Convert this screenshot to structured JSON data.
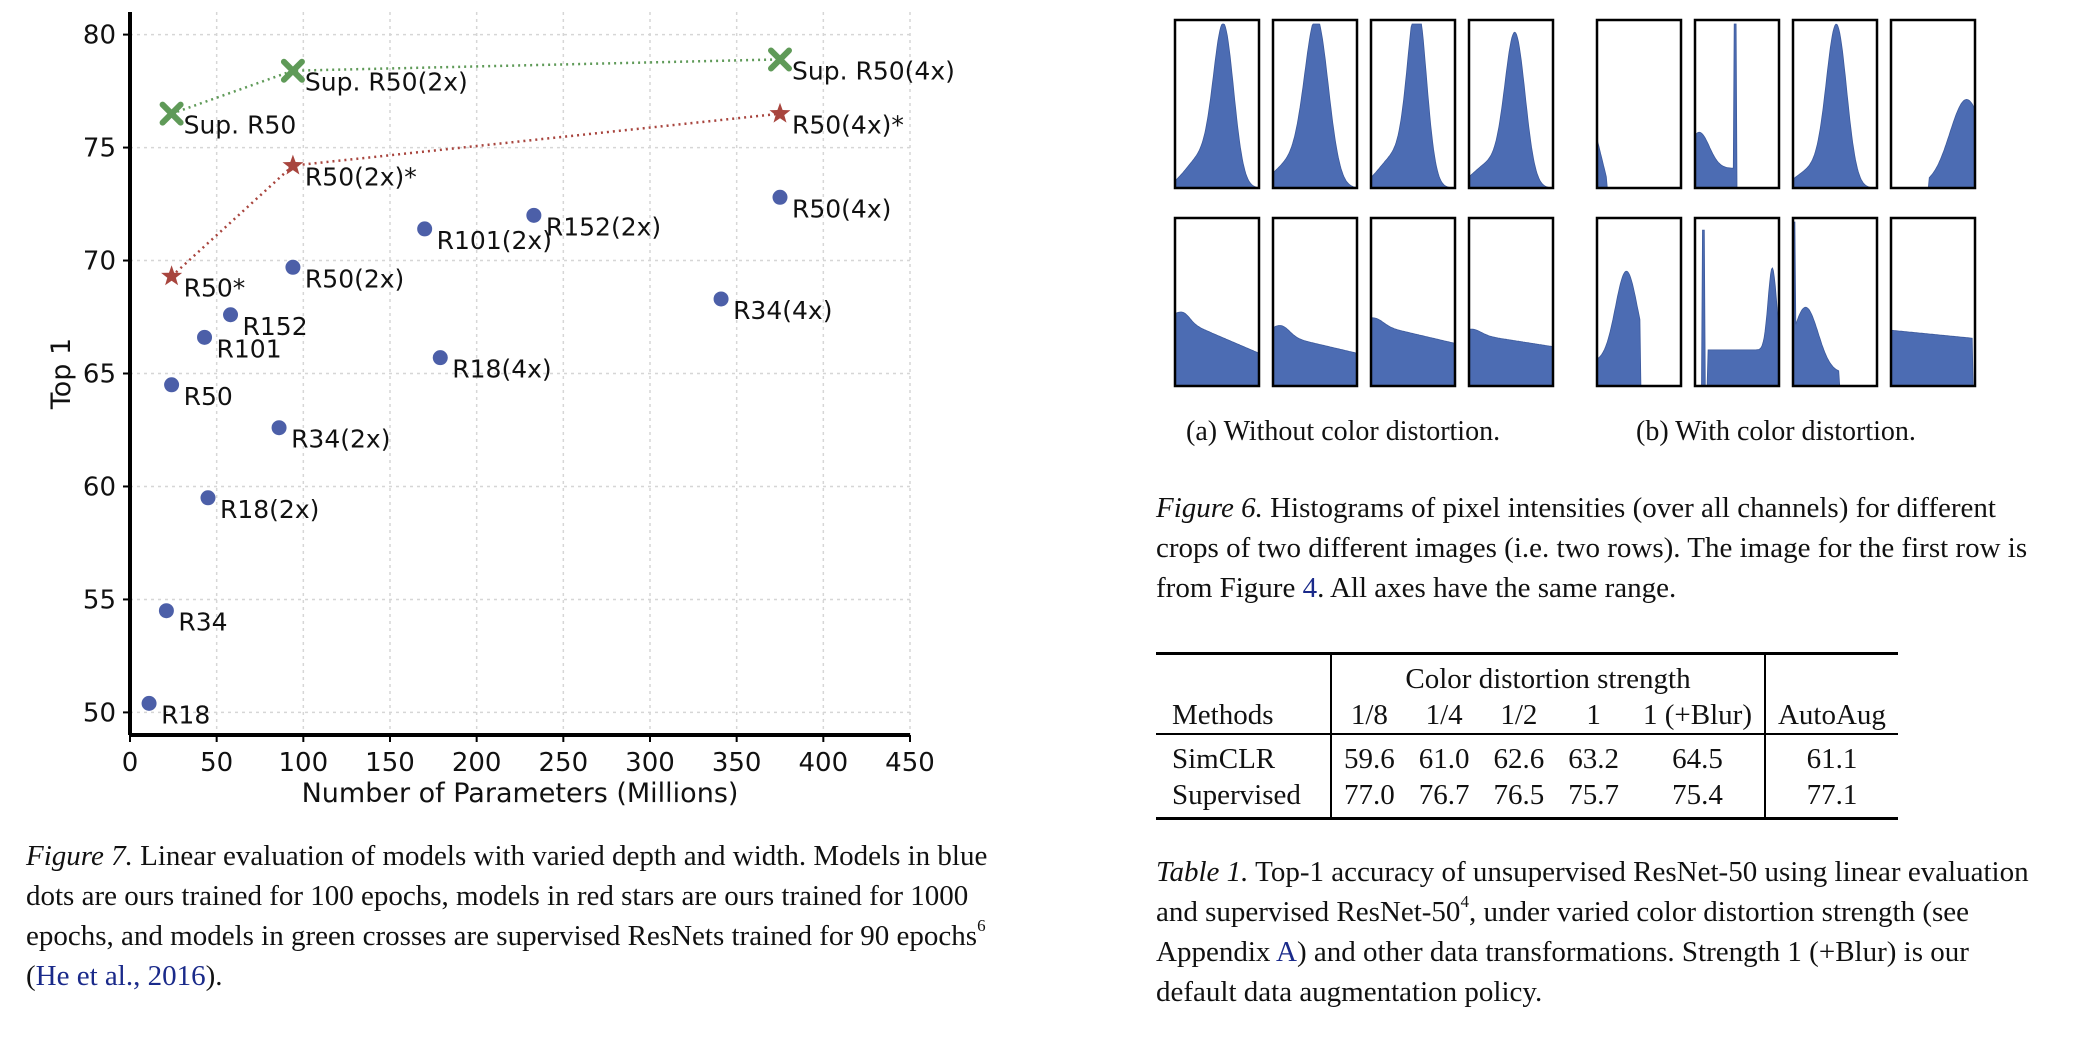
{
  "chart_data": [
    {
      "type": "scatter",
      "title": "",
      "xlabel": "Number of Parameters (Millions)",
      "ylabel": "Top 1",
      "xlim": [
        0,
        450
      ],
      "ylim": [
        49,
        81
      ],
      "xticks": [
        "0",
        "50",
        "100",
        "150",
        "200",
        "250",
        "300",
        "350",
        "400",
        "450"
      ],
      "yticks": [
        "50",
        "55",
        "60",
        "65",
        "70",
        "75",
        "80"
      ],
      "grid": true,
      "series": [
        {
          "marker": "dot",
          "color": "#4c5fa8",
          "connected": false,
          "points": [
            {
              "label": "R18",
              "x": 11,
              "y": 50.4
            },
            {
              "label": "R34",
              "x": 21,
              "y": 54.5
            },
            {
              "label": "R50",
              "x": 24,
              "y": 64.5
            },
            {
              "label": "R101",
              "x": 43,
              "y": 66.6
            },
            {
              "label": "R152",
              "x": 58,
              "y": 67.6
            },
            {
              "label": "R18(2x)",
              "x": 45,
              "y": 59.5
            },
            {
              "label": "R34(2x)",
              "x": 86,
              "y": 62.6
            },
            {
              "label": "R50(2x)",
              "x": 94,
              "y": 69.7
            },
            {
              "label": "R101(2x)",
              "x": 170,
              "y": 71.4
            },
            {
              "label": "R152(2x)",
              "x": 233,
              "y": 72.0
            },
            {
              "label": "R18(4x)",
              "x": 179,
              "y": 65.7
            },
            {
              "label": "R34(4x)",
              "x": 341,
              "y": 68.3
            },
            {
              "label": "R50(4x)",
              "x": 375,
              "y": 72.8
            }
          ]
        },
        {
          "marker": "star",
          "color": "#a8453e",
          "connected": true,
          "points": [
            {
              "label": "R50*",
              "x": 24,
              "y": 69.3
            },
            {
              "label": "R50(2x)*",
              "x": 94,
              "y": 74.2
            },
            {
              "label": "R50(4x)*",
              "x": 375,
              "y": 76.5
            }
          ]
        },
        {
          "marker": "cross",
          "color": "#5f9a58",
          "connected": true,
          "points": [
            {
              "label": "Sup. R50",
              "x": 24,
              "y": 76.5
            },
            {
              "label": "Sup. R50(2x)",
              "x": 94,
              "y": 78.4
            },
            {
              "label": "Sup. R50(4x)",
              "x": 375,
              "y": 78.9
            }
          ]
        }
      ]
    },
    {
      "type": "histogram-grid",
      "rows": 2,
      "groups": [
        {
          "caption": "(a) Without color distortion."
        },
        {
          "caption": "(b) With color distortion."
        }
      ],
      "note": "",
      "fill_color": "#4c6cb3"
    }
  ],
  "fig7_caption": {
    "label": "Figure 7.",
    "text": " Linear evaluation of models with varied depth and width. Models in blue dots are ours trained for 100 epochs, models in red stars are ours trained for 1000 epochs, and models in green crosses are supervised ResNets trained for 90 epochs",
    "footnote": "6",
    "open": " (",
    "cite": "He et al., 2016",
    "close": ")."
  },
  "fig6_caption": {
    "label": "Figure 6.",
    "text_a": " Histograms of pixel intensities (over all channels) for different crops of two different images (i.e. two rows). The image for the first row is from Figure ",
    "ref": "4",
    "text_b": ". All axes have the same range."
  },
  "table1": {
    "span_header": "Color distortion strength",
    "methods_header": "Methods",
    "columns": [
      "1/8",
      "1/4",
      "1/2",
      "1",
      "1 (+Blur)"
    ],
    "last_column": "AutoAug",
    "rows": [
      {
        "method": "SimCLR",
        "values": [
          "59.6",
          "61.0",
          "62.6",
          "63.2",
          "64.5"
        ],
        "last": "61.1"
      },
      {
        "method": "Supervised",
        "values": [
          "77.0",
          "76.7",
          "76.5",
          "75.7",
          "75.4"
        ],
        "last": "77.1"
      }
    ]
  },
  "table1_caption": {
    "label": "Table 1.",
    "text_a": " Top-1 accuracy of unsupervised ResNet-50 using linear evaluation and supervised ResNet-50",
    "footnote": "4",
    "text_b": ", under varied color distortion strength (see Appendix ",
    "ref": "A",
    "text_c": ") and other data transformations. Strength 1 (+Blur) is our default data augmentation policy."
  }
}
